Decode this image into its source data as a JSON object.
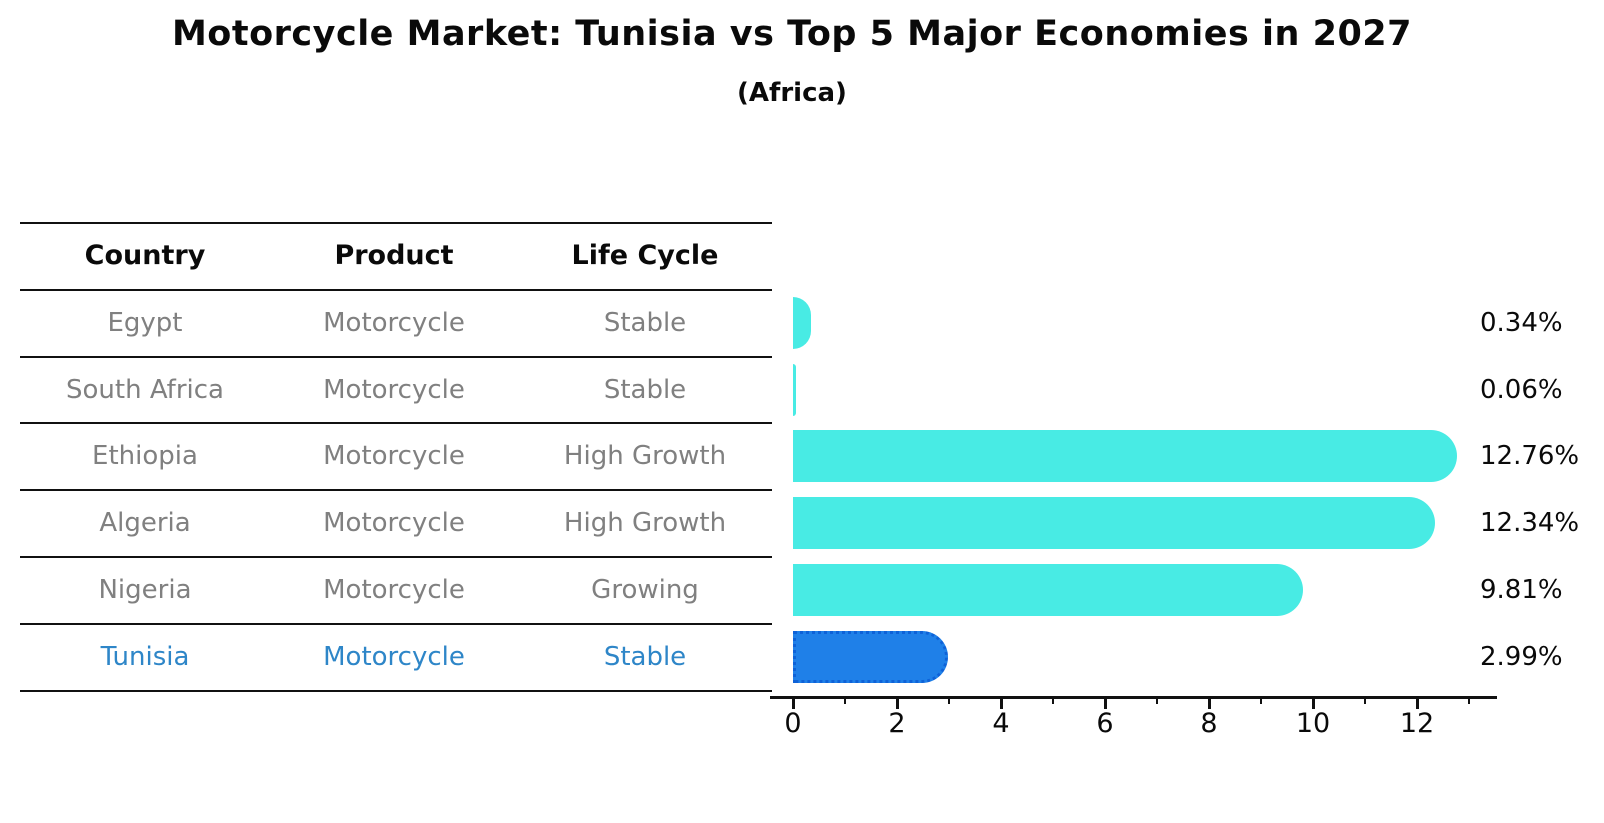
{
  "title": "Motorcycle Market: Tunisia vs Top 5 Major Economies in 2027",
  "subtitle": "(Africa)",
  "table": {
    "headers": [
      "Country",
      "Product",
      "Life Cycle"
    ],
    "rows": [
      {
        "country": "Egypt",
        "product": "Motorcycle",
        "life_cycle": "Stable",
        "value_label": "0.34%"
      },
      {
        "country": "South Africa",
        "product": "Motorcycle",
        "life_cycle": "Stable",
        "value_label": "0.06%"
      },
      {
        "country": "Ethiopia",
        "product": "Motorcycle",
        "life_cycle": "High Growth",
        "value_label": "12.76%"
      },
      {
        "country": "Algeria",
        "product": "Motorcycle",
        "life_cycle": "High Growth",
        "value_label": "12.34%"
      },
      {
        "country": "Nigeria",
        "product": "Motorcycle",
        "life_cycle": "Growing",
        "value_label": "9.81%"
      },
      {
        "country": "Tunisia",
        "product": "Motorcycle",
        "life_cycle": "Stable",
        "value_label": "2.99%"
      }
    ]
  },
  "chart_data": {
    "type": "bar",
    "orientation": "horizontal",
    "title": "Motorcycle Market: Tunisia vs Top 5 Major Economies in 2027 (Africa)",
    "categories": [
      "Egypt",
      "South Africa",
      "Ethiopia",
      "Algeria",
      "Nigeria",
      "Tunisia"
    ],
    "values": [
      0.34,
      0.06,
      12.76,
      12.34,
      9.81,
      2.99
    ],
    "value_labels": [
      "0.34%",
      "0.06%",
      "12.76%",
      "12.34%",
      "9.81%",
      "2.99%"
    ],
    "unit": "percent",
    "x_ticks": [
      0,
      2,
      4,
      6,
      8,
      10,
      12
    ],
    "x_minor_ticks": [
      1,
      3,
      5,
      7,
      9,
      11,
      13
    ],
    "xlim": [
      0,
      13.7
    ],
    "grid": false,
    "legend": false,
    "highlight_index": 5
  },
  "colors": {
    "bar": "#48EBE4",
    "highlight_bar": "#1F80E8",
    "highlight_border": "#0E62D8",
    "highlight_text": "#2E86C8",
    "row_text": "#808080",
    "axis": "#111111"
  }
}
